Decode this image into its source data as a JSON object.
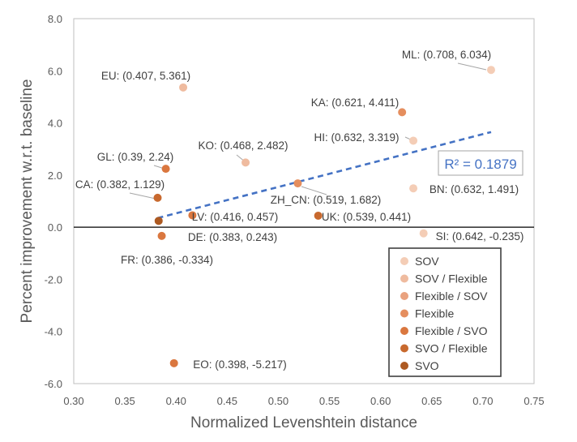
{
  "chart_data": {
    "type": "scatter",
    "title": "",
    "xlabel": "Normalized Levenshtein distance",
    "ylabel": "Percent improvement w.r.t. baseline",
    "xlim": [
      0.3,
      0.75
    ],
    "ylim": [
      -6.0,
      8.0
    ],
    "x_ticks": [
      "0.30",
      "0.35",
      "0.40",
      "0.45",
      "0.50",
      "0.55",
      "0.60",
      "0.65",
      "0.70",
      "0.75"
    ],
    "y_ticks": [
      "-6.0",
      "-4.0",
      "-2.0",
      "0.0",
      "2.0",
      "4.0",
      "6.0",
      "8.0"
    ],
    "grid": false,
    "legend_position": "bottom-right",
    "legend": [
      {
        "label": "SOV",
        "color": "#f4cdb6"
      },
      {
        "label": "SOV / Flexible",
        "color": "#efbb9f"
      },
      {
        "label": "Flexible / SOV",
        "color": "#e9a27f"
      },
      {
        "label": "Flexible",
        "color": "#e58e5e"
      },
      {
        "label": "Flexible / SVO",
        "color": "#da773f"
      },
      {
        "label": "SVO / Flexible",
        "color": "#c8692e"
      },
      {
        "label": "SVO",
        "color": "#ad5a22"
      }
    ],
    "points": [
      {
        "name": "ML",
        "x": 0.708,
        "y": 6.034,
        "category": "SOV",
        "label": "ML: (0.708, 6.034)"
      },
      {
        "name": "EU",
        "x": 0.407,
        "y": 5.361,
        "category": "SOV / Flexible",
        "label": "EU: (0.407, 5.361)"
      },
      {
        "name": "KA",
        "x": 0.621,
        "y": 4.411,
        "category": "Flexible",
        "label": "KA: (0.621, 4.411)"
      },
      {
        "name": "HI",
        "x": 0.632,
        "y": 3.319,
        "category": "SOV",
        "label": "HI: (0.632, 3.319)"
      },
      {
        "name": "KO",
        "x": 0.468,
        "y": 2.482,
        "category": "SOV / Flexible",
        "label": "KO: (0.468, 2.482)"
      },
      {
        "name": "GL",
        "x": 0.39,
        "y": 2.24,
        "category": "Flexible / SVO",
        "label": "GL: (0.39, 2.24)"
      },
      {
        "name": "CA",
        "x": 0.382,
        "y": 1.129,
        "category": "SVO / Flexible",
        "label": "CA: (0.382, 1.129)"
      },
      {
        "name": "ZH_CN",
        "x": 0.519,
        "y": 1.682,
        "category": "Flexible",
        "label": "ZH_CN: (0.519, 1.682)"
      },
      {
        "name": "BN",
        "x": 0.632,
        "y": 1.491,
        "category": "SOV",
        "label": "BN: (0.632, 1.491)"
      },
      {
        "name": "LV",
        "x": 0.416,
        "y": 0.457,
        "category": "Flexible / SVO",
        "label": "LV: (0.416, 0.457)"
      },
      {
        "name": "UK",
        "x": 0.539,
        "y": 0.441,
        "category": "SVO / Flexible",
        "label": "UK: (0.539, 0.441)"
      },
      {
        "name": "DE",
        "x": 0.383,
        "y": 0.243,
        "category": "SVO",
        "label": "DE: (0.383, 0.243)"
      },
      {
        "name": "FR",
        "x": 0.386,
        "y": -0.334,
        "category": "Flexible / SVO",
        "label": "FR: (0.386, -0.334)"
      },
      {
        "name": "SI",
        "x": 0.642,
        "y": -0.235,
        "category": "SOV",
        "label": "SI: (0.642, -0.235)"
      },
      {
        "name": "EO",
        "x": 0.398,
        "y": -5.217,
        "category": "Flexible / SVO",
        "label": "EO: (0.398, -5.217)"
      }
    ],
    "trendline": {
      "type": "linear",
      "x_range": [
        0.382,
        0.708
      ],
      "y_range": [
        0.35,
        3.65
      ],
      "r_squared_label": "R² = 0.1879",
      "color": "#4472c4"
    }
  }
}
